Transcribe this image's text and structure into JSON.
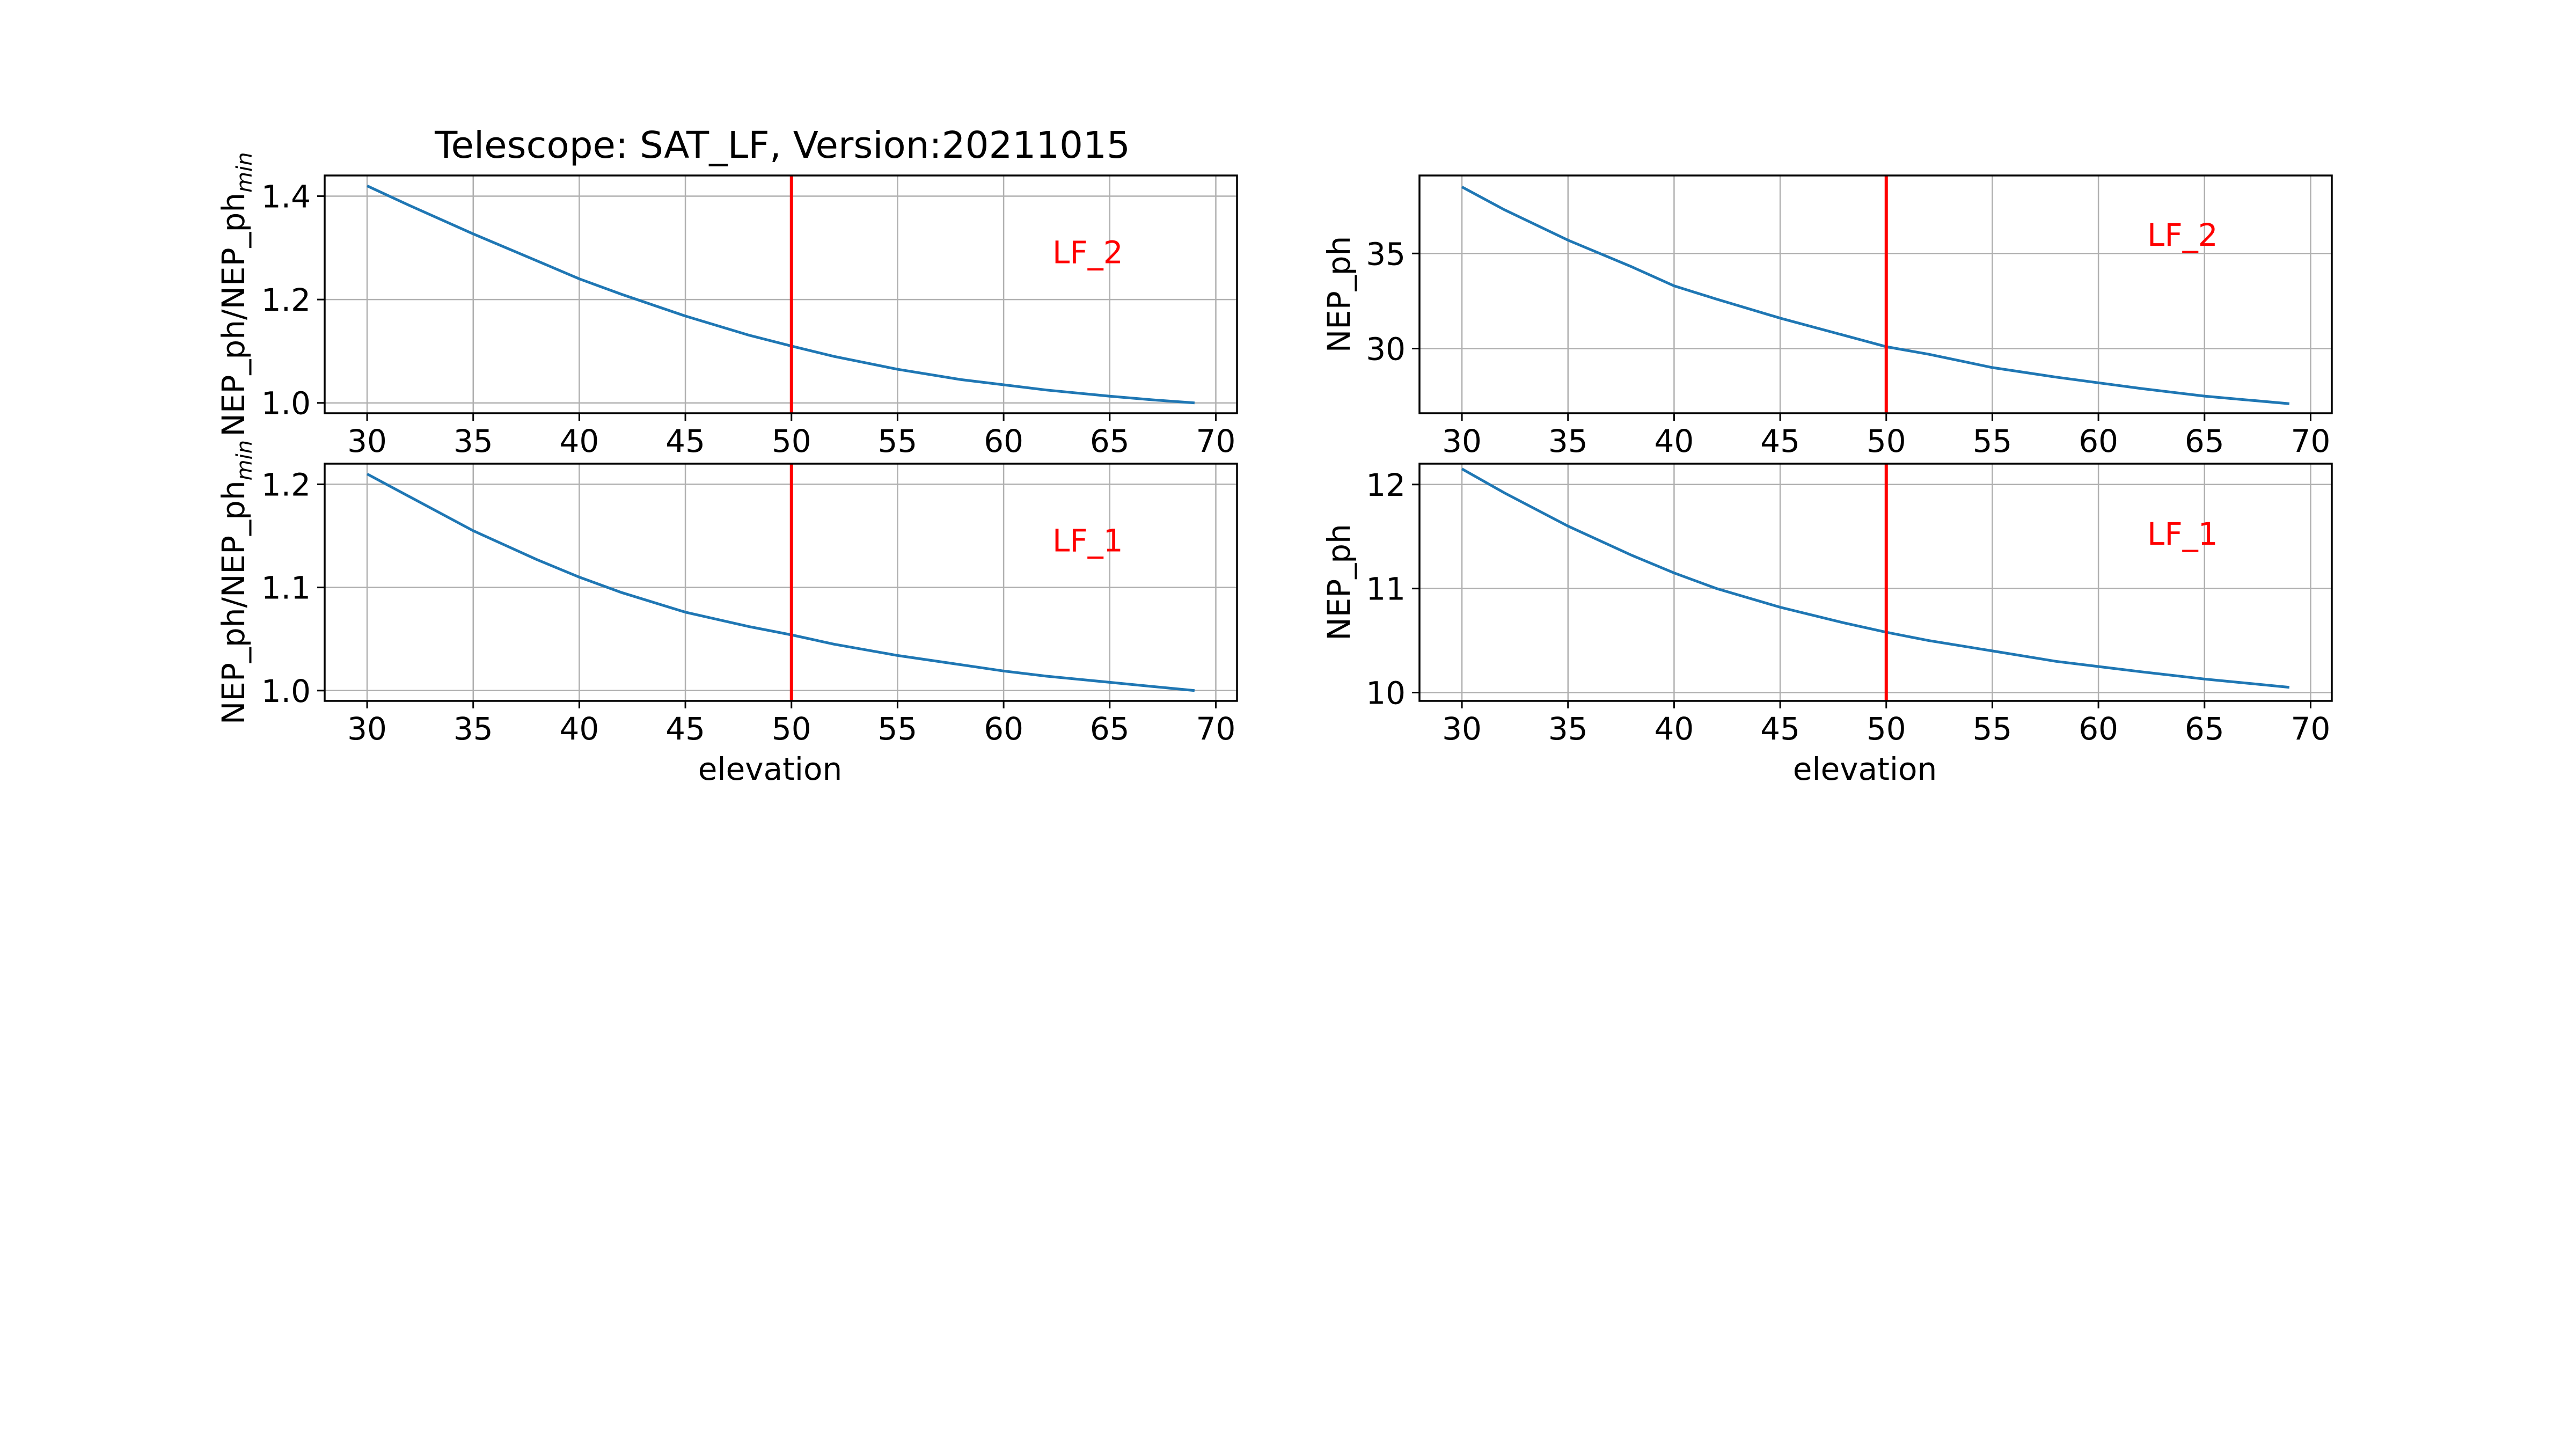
{
  "figure": {
    "title": "Telescope: SAT_LF,   Version:20211015"
  },
  "colors": {
    "line": "#1f77b4",
    "vline": "#ff0000",
    "annotation": "#ff0000",
    "grid": "#b0b0b0",
    "axes": "#000000"
  },
  "chart_data": [
    {
      "type": "line",
      "position": "top-left",
      "xlabel": "",
      "ylabel": "NEP_ph/NEP_ph",
      "ylabel_sub": "min",
      "xlim": [
        28,
        71
      ],
      "ylim": [
        0.98,
        1.44
      ],
      "xticks": [
        30,
        35,
        40,
        45,
        50,
        55,
        60,
        65,
        70
      ],
      "yticks": [
        1.0,
        1.2,
        1.4
      ],
      "ytick_labels": [
        "1.0",
        "1.2",
        "1.4"
      ],
      "grid": true,
      "vline_x": 50,
      "annotation": "LF_2",
      "annotation_at": [
        62.3,
        1.27
      ],
      "x": [
        30,
        32,
        35,
        38,
        40,
        42,
        45,
        48,
        50,
        52,
        55,
        58,
        60,
        62,
        65,
        67,
        69
      ],
      "y": [
        1.42,
        1.382,
        1.327,
        1.275,
        1.24,
        1.21,
        1.168,
        1.131,
        1.11,
        1.09,
        1.065,
        1.045,
        1.035,
        1.025,
        1.013,
        1.006,
        1.0
      ]
    },
    {
      "type": "line",
      "position": "top-right",
      "xlabel": "",
      "ylabel": "NEP_ph",
      "xlim": [
        28,
        71
      ],
      "ylim": [
        26.6,
        39.1
      ],
      "xticks": [
        30,
        35,
        40,
        45,
        50,
        55,
        60,
        65,
        70
      ],
      "yticks": [
        30,
        35
      ],
      "ytick_labels": [
        "30",
        "35"
      ],
      "grid": true,
      "vline_x": 50,
      "annotation": "LF_2",
      "annotation_at": [
        62.3,
        35.4
      ],
      "x": [
        30,
        32,
        35,
        38,
        40,
        42,
        45,
        48,
        50,
        52,
        55,
        58,
        60,
        62,
        65,
        67,
        69
      ],
      "y": [
        38.5,
        37.3,
        35.7,
        34.3,
        33.3,
        32.6,
        31.6,
        30.7,
        30.1,
        29.7,
        29.0,
        28.5,
        28.2,
        27.9,
        27.5,
        27.3,
        27.1
      ]
    },
    {
      "type": "line",
      "position": "bottom-left",
      "xlabel": "elevation",
      "ylabel": "NEP_ph/NEP_ph",
      "ylabel_sub": "min",
      "xlim": [
        28,
        71
      ],
      "ylim": [
        0.99,
        1.22
      ],
      "xticks": [
        30,
        35,
        40,
        45,
        50,
        55,
        60,
        65,
        70
      ],
      "yticks": [
        1.0,
        1.1,
        1.2
      ],
      "ytick_labels": [
        "1.0",
        "1.1",
        "1.2"
      ],
      "grid": true,
      "vline_x": 50,
      "annotation": "LF_1",
      "annotation_at": [
        62.3,
        1.135
      ],
      "x": [
        30,
        32,
        35,
        38,
        40,
        42,
        45,
        48,
        50,
        52,
        55,
        58,
        60,
        62,
        65,
        67,
        69
      ],
      "y": [
        1.21,
        1.188,
        1.155,
        1.127,
        1.11,
        1.095,
        1.076,
        1.062,
        1.054,
        1.045,
        1.034,
        1.025,
        1.019,
        1.014,
        1.008,
        1.004,
        1.0
      ]
    },
    {
      "type": "line",
      "position": "bottom-right",
      "xlabel": "elevation",
      "ylabel": "NEP_ph",
      "xlim": [
        28,
        71
      ],
      "ylim": [
        9.92,
        12.2
      ],
      "xticks": [
        30,
        35,
        40,
        45,
        50,
        55,
        60,
        65,
        70
      ],
      "yticks": [
        10,
        11,
        12
      ],
      "ytick_labels": [
        "10",
        "11",
        "12"
      ],
      "grid": true,
      "vline_x": 50,
      "annotation": "LF_1",
      "annotation_at": [
        62.3,
        11.42
      ],
      "x": [
        30,
        32,
        35,
        38,
        40,
        42,
        45,
        48,
        50,
        52,
        55,
        58,
        60,
        62,
        65,
        67,
        69
      ],
      "y": [
        12.15,
        11.92,
        11.6,
        11.32,
        11.15,
        11.0,
        10.82,
        10.67,
        10.58,
        10.5,
        10.4,
        10.3,
        10.25,
        10.2,
        10.13,
        10.09,
        10.05
      ]
    }
  ]
}
